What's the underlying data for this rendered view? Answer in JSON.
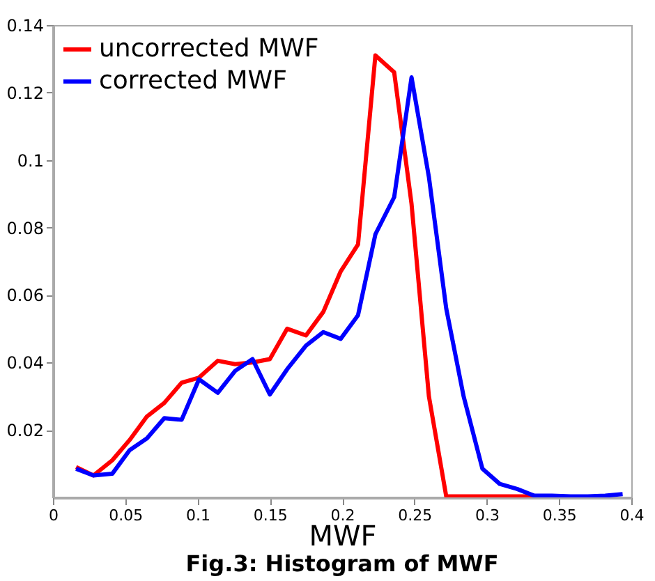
{
  "chart_data": {
    "type": "line",
    "xlabel": "MWF",
    "annotations": [
      "Fig.3: Histogram of MWF"
    ],
    "x": [
      0.016,
      0.028,
      0.041,
      0.053,
      0.065,
      0.077,
      0.089,
      0.101,
      0.114,
      0.126,
      0.138,
      0.15,
      0.162,
      0.175,
      0.187,
      0.199,
      0.211,
      0.223,
      0.236,
      0.248,
      0.26,
      0.272,
      0.284,
      0.297,
      0.309,
      0.321,
      0.333,
      0.345,
      0.358,
      0.37,
      0.382,
      0.394
    ],
    "series": [
      {
        "name": "uncorrected MWF",
        "color": "#ff0000",
        "values": [
          0.009,
          0.0065,
          0.011,
          0.017,
          0.024,
          0.028,
          0.034,
          0.0355,
          0.0405,
          0.0395,
          0.04,
          0.041,
          0.05,
          0.048,
          0.055,
          0.067,
          0.075,
          0.131,
          0.126,
          0.087,
          0.03,
          0.0003,
          0.0003,
          0.0003,
          0.0003,
          0.0003,
          0.0003,
          null,
          null,
          null,
          null,
          null
        ]
      },
      {
        "name": "corrected MWF",
        "color": "#0000ff",
        "values": [
          0.0085,
          0.0065,
          0.007,
          0.014,
          0.0175,
          0.0235,
          0.023,
          0.035,
          0.031,
          0.0375,
          0.041,
          0.0305,
          0.038,
          0.045,
          0.049,
          0.047,
          0.054,
          0.078,
          0.089,
          0.1245,
          0.095,
          0.056,
          0.03,
          0.0085,
          0.004,
          0.0025,
          0.0005,
          0.0005,
          0.0003,
          0.0003,
          0.0005,
          0.001
        ]
      }
    ],
    "xlim": [
      0,
      0.4
    ],
    "xticks": [
      0,
      0.05,
      0.1,
      0.15,
      0.2,
      0.25,
      0.3,
      0.35,
      0.4
    ],
    "ylim": [
      0,
      0.14
    ],
    "yticks": [
      0.02,
      0.04,
      0.06,
      0.08,
      0.1,
      0.12,
      0.14
    ],
    "legend": "top left",
    "marker": "none",
    "line_style": "solid"
  }
}
